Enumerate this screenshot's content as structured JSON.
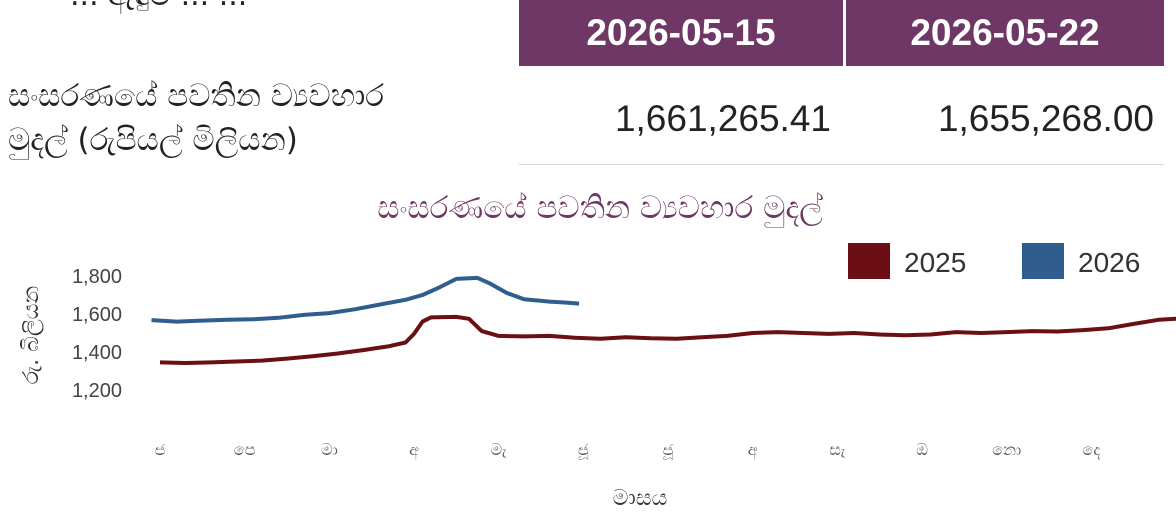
{
  "top_cut_text": "... ඇඳුම් ... ...",
  "table": {
    "headers": [
      "2026-05-15",
      "2026-05-22"
    ],
    "row_label_line1": "සංසරණයේ පවතින ව්‍යවහාර",
    "row_label_line2": "මුදල් (රුපියල් මිලියන)",
    "values": [
      "1,661,265.41",
      "1,655,268.00"
    ],
    "header_color": "#6e3765"
  },
  "chart_data": {
    "type": "line",
    "title": "සංසරණයේ පවතින ව්‍යවහාර මුදල්",
    "xlabel": "මාසය",
    "ylabel": "රු. බිලියන",
    "ylim": [
      1200,
      1800
    ],
    "yticks": [
      "1,800",
      "1,600",
      "1,400",
      "1,200"
    ],
    "ytick_values": [
      1800,
      1600,
      1400,
      1200
    ],
    "months": [
      "ජ",
      "පෙ",
      "මා",
      "අ",
      "මැ",
      "ජූ",
      "ජූ",
      "අ",
      "සැ",
      "ඔ",
      "නො",
      "දෙ"
    ],
    "grid": false,
    "legend_position": "top-right",
    "series": [
      {
        "name": "2025",
        "color": "#6b0f14",
        "points": [
          [
            0.0,
            1345
          ],
          [
            0.3,
            1342
          ],
          [
            0.6,
            1345
          ],
          [
            0.9,
            1350
          ],
          [
            1.2,
            1355
          ],
          [
            1.5,
            1365
          ],
          [
            1.8,
            1378
          ],
          [
            2.1,
            1392
          ],
          [
            2.4,
            1410
          ],
          [
            2.7,
            1430
          ],
          [
            2.9,
            1450
          ],
          [
            3.0,
            1495
          ],
          [
            3.1,
            1560
          ],
          [
            3.2,
            1582
          ],
          [
            3.5,
            1585
          ],
          [
            3.65,
            1575
          ],
          [
            3.8,
            1510
          ],
          [
            4.0,
            1485
          ],
          [
            4.3,
            1482
          ],
          [
            4.6,
            1485
          ],
          [
            4.9,
            1475
          ],
          [
            5.2,
            1470
          ],
          [
            5.5,
            1478
          ],
          [
            5.8,
            1472
          ],
          [
            6.1,
            1470
          ],
          [
            6.4,
            1478
          ],
          [
            6.7,
            1485
          ],
          [
            7.0,
            1500
          ],
          [
            7.3,
            1505
          ],
          [
            7.6,
            1500
          ],
          [
            7.9,
            1495
          ],
          [
            8.2,
            1500
          ],
          [
            8.5,
            1492
          ],
          [
            8.8,
            1488
          ],
          [
            9.1,
            1492
          ],
          [
            9.4,
            1505
          ],
          [
            9.7,
            1500
          ],
          [
            10.0,
            1505
          ],
          [
            10.3,
            1510
          ],
          [
            10.6,
            1508
          ],
          [
            10.9,
            1515
          ],
          [
            11.2,
            1525
          ],
          [
            11.5,
            1548
          ],
          [
            11.8,
            1570
          ],
          [
            12.0,
            1575
          ]
        ]
      },
      {
        "name": "2026",
        "color": "#2e5d8e",
        "points": [
          [
            -0.1,
            1568
          ],
          [
            0.2,
            1560
          ],
          [
            0.5,
            1565
          ],
          [
            0.8,
            1570
          ],
          [
            1.1,
            1572
          ],
          [
            1.4,
            1580
          ],
          [
            1.7,
            1595
          ],
          [
            2.0,
            1605
          ],
          [
            2.3,
            1625
          ],
          [
            2.6,
            1650
          ],
          [
            2.9,
            1675
          ],
          [
            3.1,
            1700
          ],
          [
            3.3,
            1740
          ],
          [
            3.5,
            1785
          ],
          [
            3.75,
            1790
          ],
          [
            3.9,
            1760
          ],
          [
            4.1,
            1710
          ],
          [
            4.3,
            1678
          ],
          [
            4.6,
            1665
          ],
          [
            4.8,
            1660
          ],
          [
            4.95,
            1655
          ]
        ]
      }
    ]
  }
}
